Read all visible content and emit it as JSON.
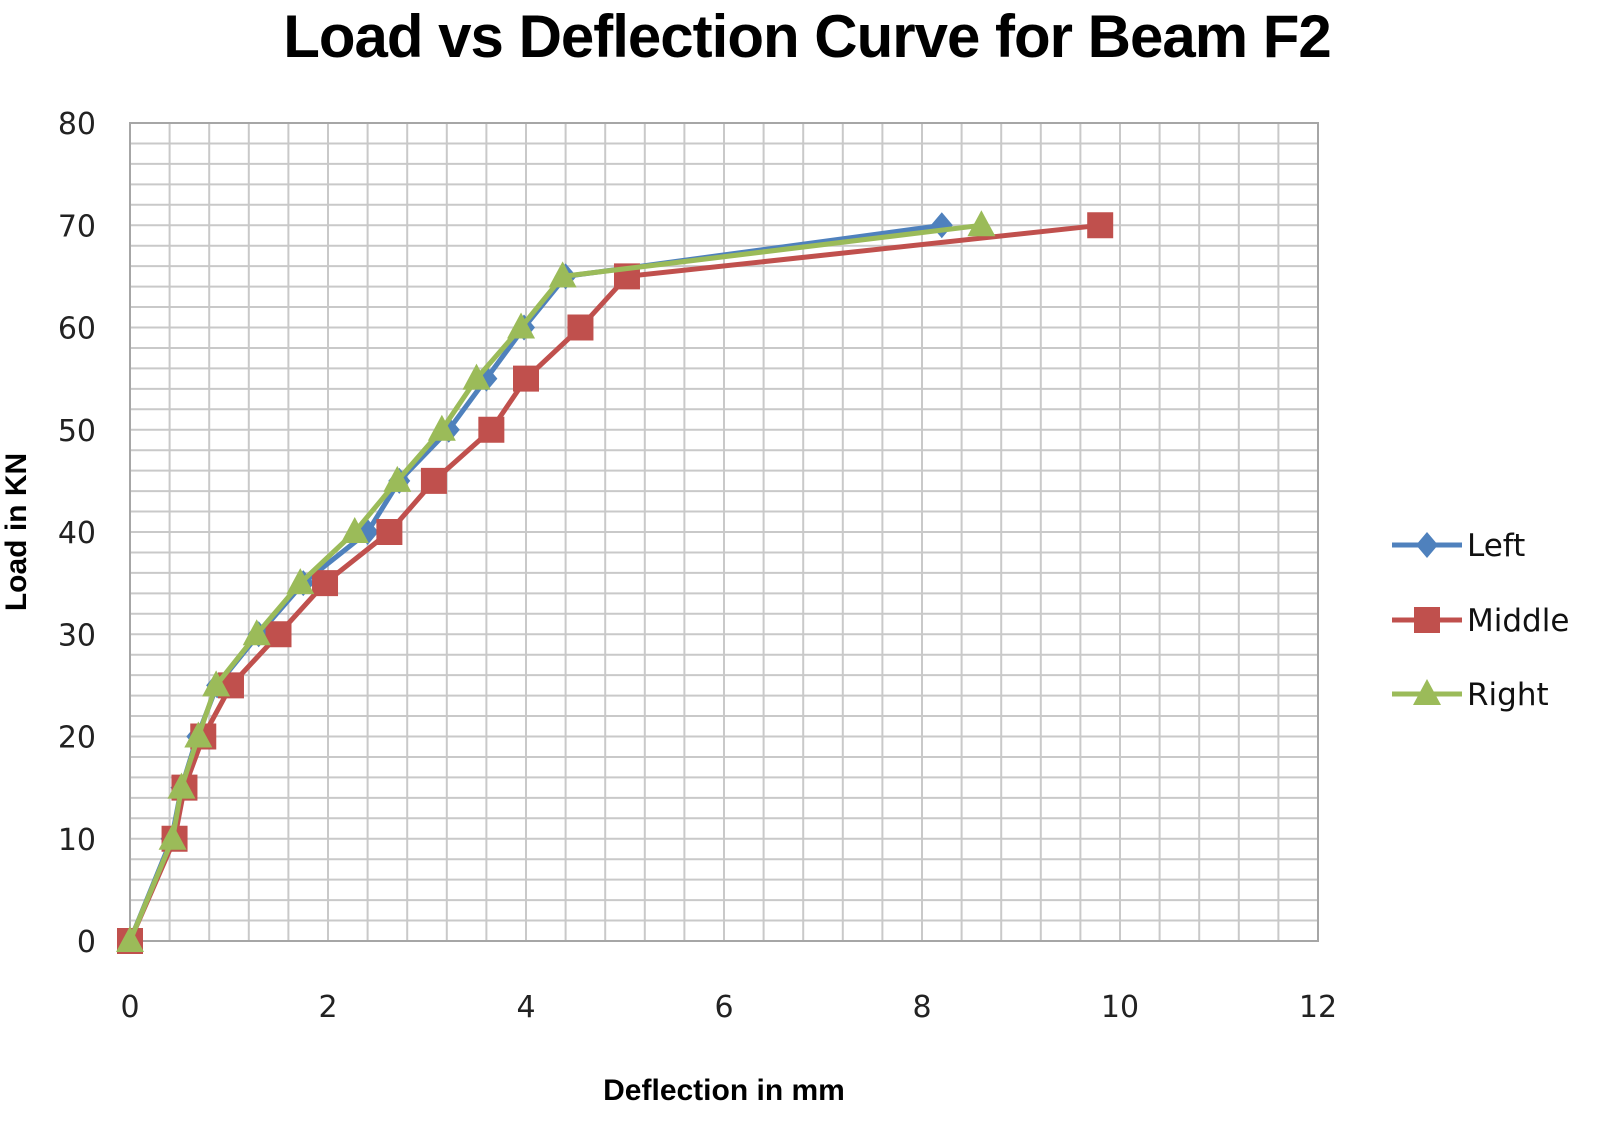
{
  "chart_data": {
    "type": "line",
    "title": "Load vs Deflection Curve for Beam F2",
    "xlabel": "Deflection in mm",
    "ylabel": "Load in KN",
    "xlim": [
      0,
      12
    ],
    "ylim": [
      0,
      80
    ],
    "x_ticks": [
      "0",
      "2",
      "4",
      "6",
      "8",
      "10",
      "12"
    ],
    "y_ticks": [
      "0",
      "10",
      "20",
      "30",
      "40",
      "50",
      "60",
      "70",
      "80"
    ],
    "grid": true,
    "legend_position": "right",
    "series": [
      {
        "name": "Left",
        "color": "#4f81bd",
        "marker": "diamond",
        "points": [
          [
            0,
            0
          ],
          [
            0.42,
            10
          ],
          [
            0.52,
            15
          ],
          [
            0.68,
            20
          ],
          [
            0.88,
            25
          ],
          [
            1.3,
            30
          ],
          [
            1.75,
            35
          ],
          [
            2.4,
            40
          ],
          [
            2.72,
            45
          ],
          [
            3.22,
            50
          ],
          [
            3.6,
            55
          ],
          [
            3.98,
            60
          ],
          [
            4.4,
            65
          ],
          [
            8.2,
            70
          ]
        ]
      },
      {
        "name": "Middle",
        "color": "#c0504d",
        "marker": "square",
        "points": [
          [
            0,
            0
          ],
          [
            0.45,
            10
          ],
          [
            0.55,
            15
          ],
          [
            0.74,
            20
          ],
          [
            1.02,
            25
          ],
          [
            1.5,
            30
          ],
          [
            1.97,
            35
          ],
          [
            2.62,
            40
          ],
          [
            3.07,
            45
          ],
          [
            3.65,
            50
          ],
          [
            4.0,
            55
          ],
          [
            4.55,
            60
          ],
          [
            5.02,
            65
          ],
          [
            9.8,
            70
          ]
        ]
      },
      {
        "name": "Right",
        "color": "#9bbb59",
        "marker": "triangle",
        "points": [
          [
            0,
            0
          ],
          [
            0.43,
            10
          ],
          [
            0.52,
            15
          ],
          [
            0.69,
            20
          ],
          [
            0.87,
            25
          ],
          [
            1.28,
            30
          ],
          [
            1.72,
            35
          ],
          [
            2.27,
            40
          ],
          [
            2.7,
            45
          ],
          [
            3.15,
            50
          ],
          [
            3.5,
            55
          ],
          [
            3.95,
            60
          ],
          [
            4.37,
            65
          ],
          [
            8.6,
            70
          ]
        ]
      }
    ]
  }
}
